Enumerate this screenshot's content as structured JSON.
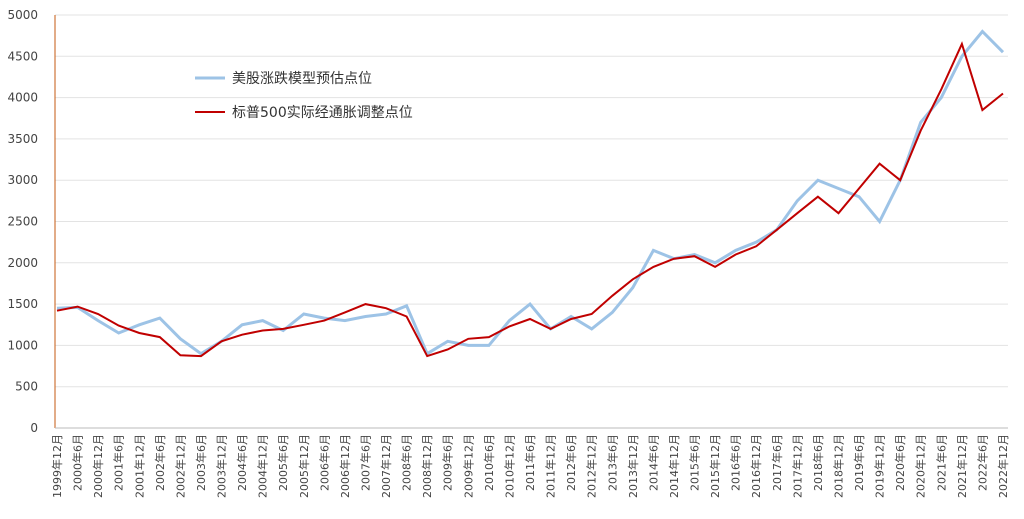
{
  "chart_data": {
    "type": "line",
    "categories": [
      "1999年12月",
      "2000年6月",
      "2000年12月",
      "2001年6月",
      "2001年12月",
      "2002年6月",
      "2002年12月",
      "2003年6月",
      "2003年12月",
      "2004年6月",
      "2004年12月",
      "2005年6月",
      "2005年12月",
      "2006年6月",
      "2006年12月",
      "2007年6月",
      "2007年12月",
      "2008年6月",
      "2008年12月",
      "2009年6月",
      "2009年12月",
      "2010年6月",
      "2010年12月",
      "2011年6月",
      "2011年12月",
      "2012年6月",
      "2012年12月",
      "2013年6月",
      "2013年12月",
      "2014年6月",
      "2014年12月",
      "2015年6月",
      "2015年12月",
      "2016年6月",
      "2016年12月",
      "2017年6月",
      "2017年12月",
      "2018年6月",
      "2018年12月",
      "2019年6月",
      "2019年12月",
      "2020年6月",
      "2020年12月",
      "2021年6月",
      "2021年12月",
      "2022年6月",
      "2022年12月"
    ],
    "series": [
      {
        "name": "美股涨跌模型预估点位",
        "color": "#9dc3e6",
        "values": [
          1450,
          1460,
          1300,
          1150,
          1250,
          1330,
          1080,
          900,
          1050,
          1250,
          1300,
          1180,
          1380,
          1330,
          1300,
          1350,
          1380,
          1480,
          900,
          1050,
          1000,
          1000,
          1300,
          1500,
          1200,
          1350,
          1200,
          1400,
          1700,
          2150,
          2050,
          2100,
          2000,
          2150,
          2250,
          2400,
          2750,
          3000,
          2900,
          2800,
          2500,
          3000,
          3700,
          4000,
          4500,
          4800,
          4550
        ]
      },
      {
        "name": "标普500实际经通胀调整点位",
        "color": "#c00000",
        "values": [
          1420,
          1470,
          1380,
          1240,
          1150,
          1100,
          880,
          870,
          1050,
          1130,
          1180,
          1200,
          1250,
          1300,
          1400,
          1500,
          1450,
          1350,
          870,
          950,
          1080,
          1100,
          1230,
          1320,
          1200,
          1320,
          1380,
          1600,
          1800,
          1950,
          2050,
          2080,
          1950,
          2100,
          2200,
          2400,
          2600,
          2800,
          2600,
          2900,
          3200,
          3000,
          3600,
          4100,
          4650,
          3850,
          4050
        ]
      }
    ],
    "ylim": [
      0,
      5000
    ],
    "yticks": [
      0,
      500,
      1000,
      1500,
      2000,
      2500,
      3000,
      3500,
      4000,
      4500,
      5000
    ],
    "grid": true
  }
}
